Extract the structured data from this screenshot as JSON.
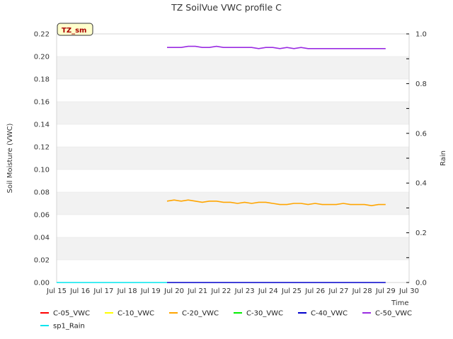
{
  "chart_data": {
    "type": "line",
    "title": "TZ SoilVue VWC profile C",
    "ylabel": "Soil Moisture (VWC)",
    "y2label": "Rain",
    "xlabel": "Time",
    "badge": "TZ_sm",
    "ylim": [
      0,
      0.22
    ],
    "y2lim": [
      0,
      1.0
    ],
    "xlim": [
      15,
      30
    ],
    "yticks": [
      "0.00",
      "0.02",
      "0.04",
      "0.06",
      "0.08",
      "0.10",
      "0.12",
      "0.14",
      "0.16",
      "0.18",
      "0.20",
      "0.22"
    ],
    "y2ticks": [
      "0.0",
      "0.2",
      "0.4",
      "0.6",
      "0.8",
      "1.0"
    ],
    "xticks": [
      "Jul 15",
      "Jul 16",
      "Jul 17",
      "Jul 18",
      "Jul 19",
      "Jul 20",
      "Jul 21",
      "Jul 22",
      "Jul 23",
      "Jul 24",
      "Jul 25",
      "Jul 26",
      "Jul 27",
      "Jul 28",
      "Jul 29",
      "Jul 30"
    ],
    "series": [
      {
        "name": "C-05_VWC",
        "color": "#ff0000",
        "axis": "left",
        "x": [],
        "y": []
      },
      {
        "name": "C-10_VWC",
        "color": "#ffff00",
        "axis": "left",
        "x": [],
        "y": []
      },
      {
        "name": "C-20_VWC",
        "color": "#ffa500",
        "axis": "left",
        "x": [
          19.7,
          20.0,
          20.3,
          20.6,
          20.9,
          21.2,
          21.5,
          21.8,
          22.1,
          22.4,
          22.7,
          23.0,
          23.3,
          23.6,
          23.9,
          24.2,
          24.5,
          24.8,
          25.1,
          25.4,
          25.7,
          26.0,
          26.3,
          26.6,
          26.9,
          27.2,
          27.5,
          27.8,
          28.1,
          28.4,
          28.7,
          29.0
        ],
        "y": [
          0.072,
          0.073,
          0.072,
          0.073,
          0.072,
          0.071,
          0.072,
          0.072,
          0.071,
          0.071,
          0.07,
          0.071,
          0.07,
          0.071,
          0.071,
          0.07,
          0.069,
          0.069,
          0.07,
          0.07,
          0.069,
          0.07,
          0.069,
          0.069,
          0.069,
          0.07,
          0.069,
          0.069,
          0.069,
          0.068,
          0.069,
          0.069
        ]
      },
      {
        "name": "C-30_VWC",
        "color": "#00ee00",
        "axis": "left",
        "x": [],
        "y": []
      },
      {
        "name": "C-40_VWC",
        "color": "#0000cc",
        "axis": "left",
        "x": [
          19.7,
          29.0
        ],
        "y": [
          0.0,
          0.0
        ]
      },
      {
        "name": "C-50_VWC",
        "color": "#9a2be2",
        "axis": "left",
        "x": [
          19.7,
          20.0,
          20.3,
          20.6,
          20.9,
          21.2,
          21.5,
          21.8,
          22.1,
          22.4,
          22.7,
          23.0,
          23.3,
          23.6,
          23.9,
          24.2,
          24.5,
          24.8,
          25.1,
          25.4,
          25.7,
          26.0,
          26.3,
          26.6,
          26.9,
          27.2,
          27.5,
          27.8,
          28.1,
          28.4,
          28.7,
          29.0
        ],
        "y": [
          0.208,
          0.208,
          0.208,
          0.209,
          0.209,
          0.208,
          0.208,
          0.209,
          0.208,
          0.208,
          0.208,
          0.208,
          0.208,
          0.207,
          0.208,
          0.208,
          0.207,
          0.208,
          0.207,
          0.208,
          0.207,
          0.207,
          0.207,
          0.207,
          0.207,
          0.207,
          0.207,
          0.207,
          0.207,
          0.207,
          0.207,
          0.207
        ]
      },
      {
        "name": "sp1_Rain",
        "color": "#00e5ee",
        "axis": "right",
        "x": [
          15.0,
          19.7
        ],
        "y": [
          0.0,
          0.0
        ]
      }
    ],
    "grid": "horizontal alternating bands",
    "legend_position": "bottom"
  }
}
